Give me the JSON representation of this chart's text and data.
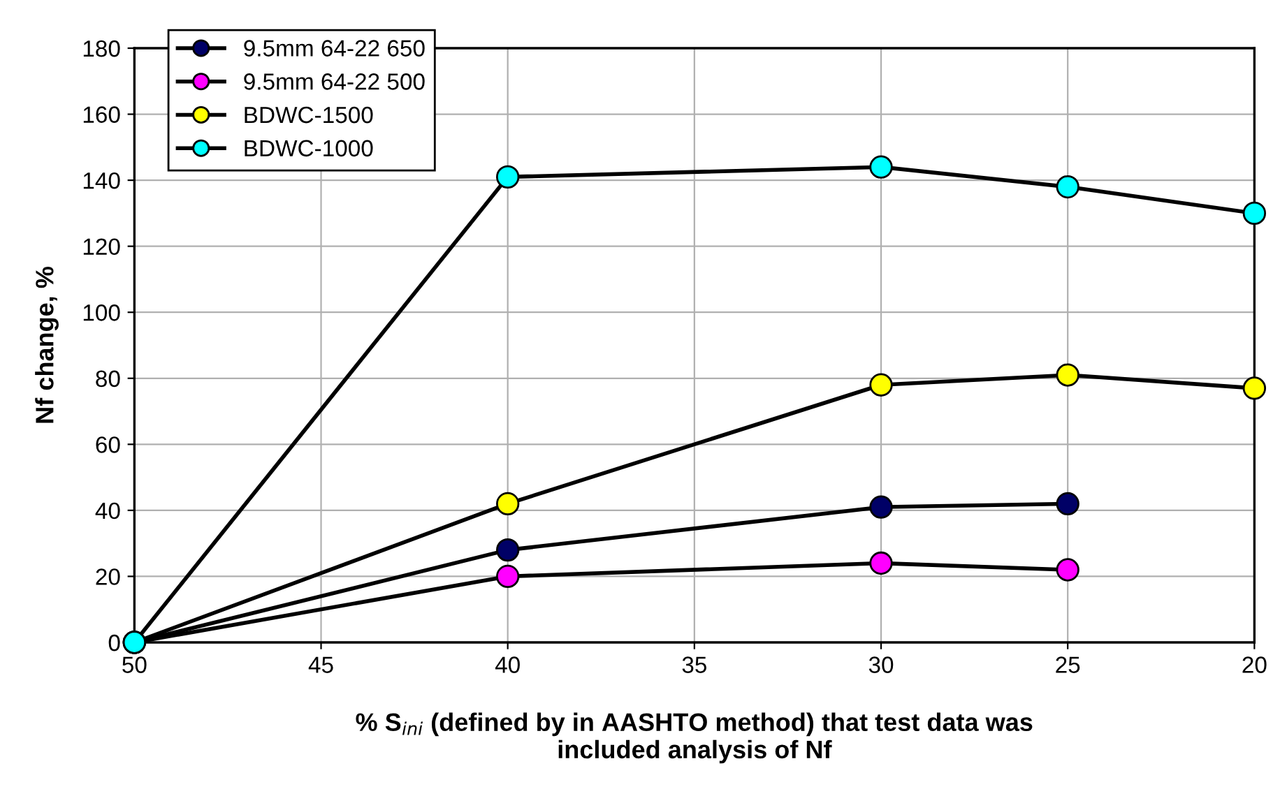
{
  "chart_data": {
    "type": "line",
    "xlabel": "% S$_{ini}$ (defined by in AASHTO method) that test data was\nincluded analysis of Nf",
    "ylabel": "Nf change, %",
    "series": [
      {
        "name": "9.5mm 64-22 650",
        "color": "#000066",
        "x": [
          50,
          40,
          30,
          25
        ],
        "values": [
          0,
          28,
          41,
          42
        ]
      },
      {
        "name": "9.5mm 64-22 500",
        "color": "#ff00ff",
        "x": [
          50,
          40,
          30,
          25
        ],
        "values": [
          0,
          20,
          24,
          22
        ]
      },
      {
        "name": "BDWC-1500",
        "color": "#ffff00",
        "x": [
          50,
          40,
          30,
          25,
          20
        ],
        "values": [
          0,
          42,
          78,
          81,
          77
        ]
      },
      {
        "name": "BDWC-1000",
        "color": "#00ffff",
        "x": [
          50,
          40,
          30,
          25,
          20
        ],
        "values": [
          0,
          141,
          144,
          138,
          130
        ]
      }
    ],
    "xlim": [
      50,
      20
    ],
    "xticks": [
      50,
      45,
      40,
      35,
      30,
      25,
      20
    ],
    "ylim": [
      0,
      180
    ],
    "yticks": [
      0,
      20,
      40,
      60,
      80,
      100,
      120,
      140,
      160,
      180
    ],
    "grid": true,
    "legend": "top left",
    "marker": "circle",
    "line_style": "solid"
  }
}
